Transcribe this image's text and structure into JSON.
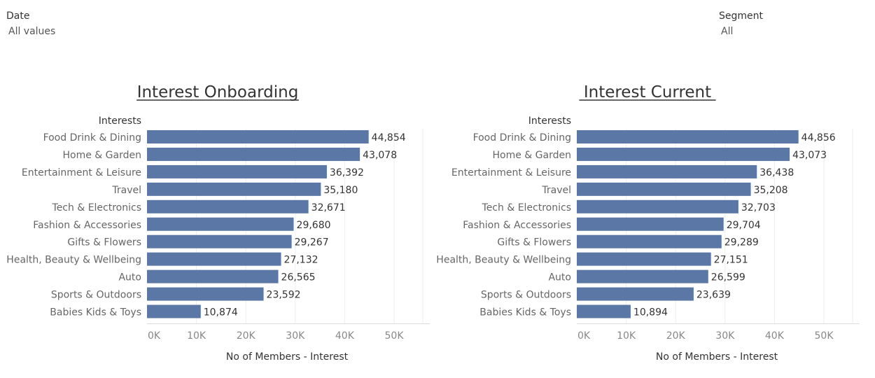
{
  "filters": {
    "date": {
      "label": "Date",
      "value": "All values"
    },
    "segment": {
      "label": "Segment",
      "value": "All"
    }
  },
  "colors": {
    "bar": "#5b77a6"
  },
  "chart_data": [
    {
      "type": "bar",
      "orientation": "horizontal",
      "title": "Interest Onboarding",
      "category_header": "Interests",
      "xlabel": "No of Members - Interest",
      "xlim": [
        0,
        55000
      ],
      "xticks": [
        "0K",
        "10K",
        "20K",
        "30K",
        "40K",
        "50K"
      ],
      "xtick_values": [
        0,
        10000,
        20000,
        30000,
        40000,
        50000
      ],
      "categories": [
        "Food Drink & Dining",
        "Home & Garden",
        "Entertainment & Leisure",
        "Travel",
        "Tech & Electronics",
        "Fashion & Accessories",
        "Gifts & Flowers",
        "Health, Beauty & Wellbeing",
        "Auto",
        "Sports & Outdoors",
        "Babies Kids & Toys"
      ],
      "values": [
        44854,
        43078,
        36392,
        35180,
        32671,
        29680,
        29267,
        27132,
        26565,
        23592,
        10874
      ],
      "value_labels": [
        "44,854",
        "43,078",
        "36,392",
        "35,180",
        "32,671",
        "29,680",
        "29,267",
        "27,132",
        "26,565",
        "23,592",
        "10,874"
      ],
      "grid": true
    },
    {
      "type": "bar",
      "orientation": "horizontal",
      "title": "Interest Current",
      "category_header": "Interests",
      "xlabel": "No of Members - Interest",
      "xlim": [
        0,
        55000
      ],
      "xticks": [
        "0K",
        "10K",
        "20K",
        "30K",
        "40K",
        "50K"
      ],
      "xtick_values": [
        0,
        10000,
        20000,
        30000,
        40000,
        50000
      ],
      "categories": [
        "Food Drink & Dining",
        "Home & Garden",
        "Entertainment & Leisure",
        "Travel",
        "Tech & Electronics",
        "Fashion & Accessories",
        "Gifts & Flowers",
        "Health, Beauty & Wellbeing",
        "Auto",
        "Sports & Outdoors",
        "Babies Kids & Toys"
      ],
      "values": [
        44856,
        43073,
        36438,
        35208,
        32703,
        29704,
        29289,
        27151,
        26599,
        23639,
        10894
      ],
      "value_labels": [
        "44,856",
        "43,073",
        "36,438",
        "35,208",
        "32,703",
        "29,704",
        "29,289",
        "27,151",
        "26,599",
        "23,639",
        "10,894"
      ],
      "grid": true
    }
  ]
}
